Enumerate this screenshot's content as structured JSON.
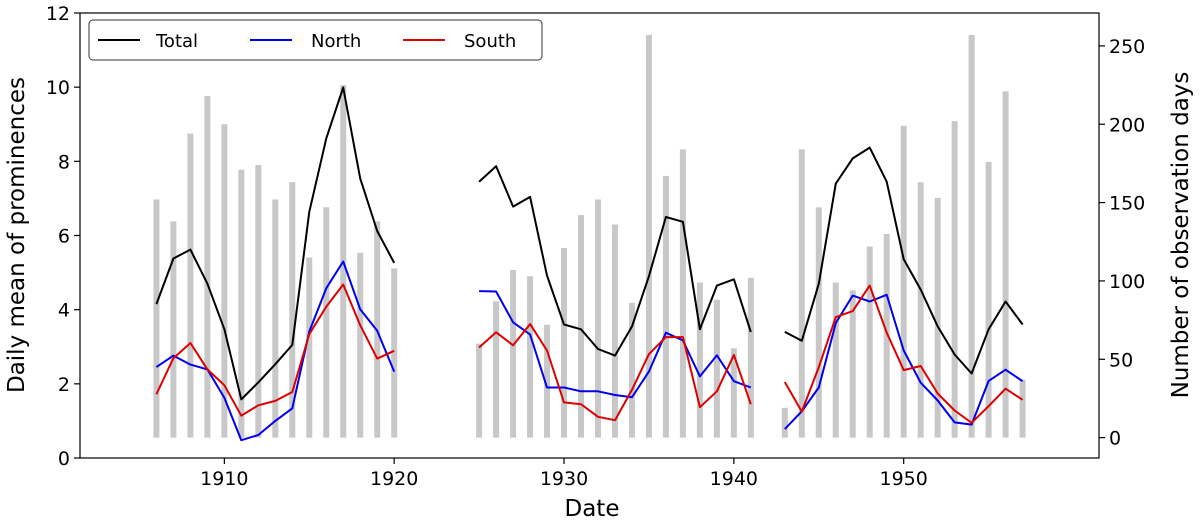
{
  "chart_data": {
    "type": "line",
    "xlabel": "Date",
    "ylabel": "Daily mean of prominences",
    "y2label": "Number of observation days",
    "xlim": [
      1901.5,
      1961.5
    ],
    "ylim": [
      0,
      12
    ],
    "y2lim": [
      -13,
      271
    ],
    "xticks": [
      1910,
      1920,
      1930,
      1940,
      1950
    ],
    "yticks": [
      0,
      2,
      4,
      6,
      8,
      10,
      12
    ],
    "y2ticks": [
      0,
      50,
      100,
      150,
      200,
      250
    ],
    "grid": false,
    "legend_position": "top-left",
    "bar_color": "#c8c8c8",
    "bars": {
      "name": "Number of observation days",
      "axis": "right",
      "x": [
        1906,
        1907,
        1908,
        1909,
        1910,
        1911,
        1912,
        1913,
        1914,
        1915,
        1916,
        1917,
        1918,
        1919,
        1920,
        1925,
        1926,
        1927,
        1928,
        1929,
        1930,
        1931,
        1932,
        1933,
        1934,
        1935,
        1936,
        1937,
        1938,
        1939,
        1940,
        1941,
        1943,
        1944,
        1945,
        1946,
        1947,
        1948,
        1949,
        1950,
        1951,
        1952,
        1953,
        1954,
        1955,
        1956,
        1957
      ],
      "values": [
        152,
        138,
        194,
        218,
        200,
        171,
        174,
        152,
        163,
        115,
        147,
        225,
        118,
        138,
        108,
        60,
        87,
        107,
        103,
        72,
        121,
        142,
        152,
        136,
        86,
        257,
        167,
        184,
        99,
        88,
        57,
        102,
        19,
        184,
        147,
        99,
        94,
        122,
        130,
        199,
        163,
        153,
        202,
        257,
        176,
        221,
        37
      ]
    },
    "series": [
      {
        "name": "Total",
        "color": "#000000",
        "segments": [
          {
            "x": [
              1906,
              1907,
              1908,
              1909,
              1910,
              1911,
              1912,
              1913,
              1914,
              1915,
              1916,
              1917,
              1918,
              1919,
              1920
            ],
            "y": [
              4.15,
              5.38,
              5.62,
              4.7,
              3.47,
              1.58,
              2.04,
              2.53,
              3.05,
              6.64,
              8.62,
              9.99,
              7.54,
              6.12,
              5.26
            ]
          },
          {
            "x": [
              1925,
              1926,
              1927,
              1928,
              1929,
              1930,
              1931,
              1932,
              1933,
              1934,
              1935,
              1936,
              1937,
              1938,
              1939,
              1940,
              1941
            ],
            "y": [
              7.45,
              7.87,
              6.78,
              7.04,
              4.92,
              3.6,
              3.47,
              2.94,
              2.76,
              3.55,
              4.9,
              6.5,
              6.37,
              3.47,
              4.65,
              4.82,
              3.4
            ]
          },
          {
            "x": [
              1943,
              1944,
              1945,
              1946,
              1947,
              1948,
              1949,
              1950,
              1951,
              1952,
              1953,
              1954,
              1955,
              1956,
              1957
            ],
            "y": [
              3.4,
              3.16,
              4.7,
              7.4,
              8.08,
              8.37,
              7.45,
              5.36,
              4.54,
              3.55,
              2.79,
              2.28,
              3.47,
              4.22,
              3.6
            ]
          }
        ]
      },
      {
        "name": "North",
        "color": "#0000ee",
        "segments": [
          {
            "x": [
              1906,
              1907,
              1908,
              1909,
              1910,
              1911,
              1912,
              1913,
              1914,
              1915,
              1916,
              1917,
              1918,
              1919,
              1920
            ],
            "y": [
              2.45,
              2.76,
              2.52,
              2.39,
              1.62,
              0.48,
              0.62,
              1.0,
              1.34,
              3.41,
              4.58,
              5.3,
              4.01,
              3.43,
              2.33
            ]
          },
          {
            "x": [
              1925,
              1926,
              1927,
              1928,
              1929,
              1930,
              1931,
              1932,
              1933,
              1934,
              1935,
              1936,
              1937,
              1938,
              1939,
              1940,
              1941
            ],
            "y": [
              4.5,
              4.49,
              3.66,
              3.33,
              1.9,
              1.9,
              1.8,
              1.8,
              1.7,
              1.64,
              2.33,
              3.38,
              3.17,
              2.2,
              2.77,
              2.07,
              1.9
            ]
          },
          {
            "x": [
              1943,
              1944,
              1945,
              1946,
              1947,
              1948,
              1949,
              1950,
              1951,
              1952,
              1953,
              1954,
              1955,
              1956,
              1957
            ],
            "y": [
              0.78,
              1.26,
              1.9,
              3.64,
              4.38,
              4.22,
              4.4,
              2.9,
              2.03,
              1.55,
              0.96,
              0.9,
              2.08,
              2.38,
              2.07
            ]
          }
        ]
      },
      {
        "name": "South",
        "color": "#dd0000",
        "segments": [
          {
            "x": [
              1906,
              1907,
              1908,
              1909,
              1910,
              1911,
              1912,
              1913,
              1914,
              1915,
              1916,
              1917,
              1918,
              1919,
              1920
            ],
            "y": [
              1.72,
              2.69,
              3.1,
              2.39,
              1.96,
              1.14,
              1.42,
              1.54,
              1.78,
              3.34,
              4.08,
              4.68,
              3.58,
              2.68,
              2.89
            ]
          },
          {
            "x": [
              1925,
              1926,
              1927,
              1928,
              1929,
              1930,
              1931,
              1932,
              1933,
              1934,
              1935,
              1936,
              1937,
              1938,
              1939,
              1940,
              1941
            ],
            "y": [
              2.98,
              3.39,
              3.04,
              3.61,
              2.9,
              1.5,
              1.45,
              1.11,
              1.02,
              1.84,
              2.8,
              3.26,
              3.26,
              1.37,
              1.8,
              2.78,
              1.45
            ]
          },
          {
            "x": [
              1943,
              1944,
              1945,
              1946,
              1947,
              1948,
              1949,
              1950,
              1951,
              1952,
              1953,
              1954,
              1955,
              1956,
              1957
            ],
            "y": [
              2.05,
              1.25,
              2.45,
              3.8,
              3.96,
              4.65,
              3.38,
              2.37,
              2.48,
              1.74,
              1.28,
              0.95,
              1.4,
              1.87,
              1.57
            ]
          }
        ]
      }
    ]
  }
}
